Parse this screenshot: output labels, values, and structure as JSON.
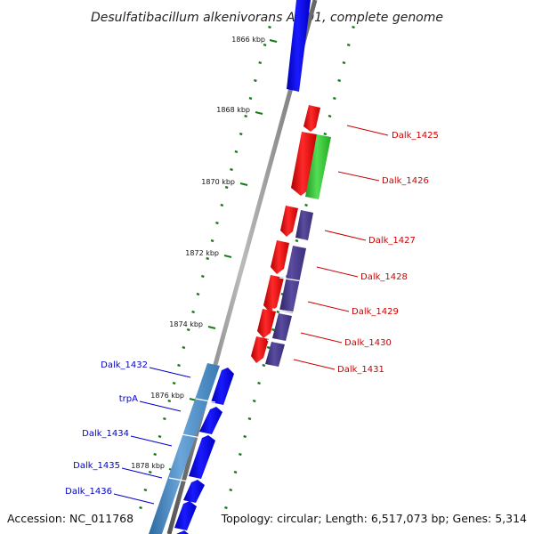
{
  "title": "Desulfatibacillum alkenivorans AK-01, complete genome",
  "accession": "Accession: NC_011768",
  "summary": "Topology: circular; Length: 6,517,073 bp; Genes: 5,314",
  "colors": {
    "backbone": "#808080",
    "tick": "#1a7a1a",
    "forward_gene": "#ff0000",
    "reverse_gene": "#0000ee",
    "rna_gene": "#33cc33",
    "operon": "#4a3c8c",
    "operon_blue": "#4a86c0",
    "forward_label": "#cc0000",
    "reverse_label": "#0000cc"
  },
  "position_markers": [
    {
      "label": "1866 kbp"
    },
    {
      "label": "1868 kbp"
    },
    {
      "label": "1870 kbp"
    },
    {
      "label": "1872 kbp"
    },
    {
      "label": "1874 kbp"
    },
    {
      "label": "1876 kbp"
    },
    {
      "label": "1878 kbp"
    }
  ],
  "forward_strand_labels": [
    "Dalk_1425",
    "Dalk_1426",
    "Dalk_1427",
    "Dalk_1428",
    "Dalk_1429",
    "Dalk_1430",
    "Dalk_1431"
  ],
  "reverse_strand_labels": [
    "Dalk_1432",
    "trpA",
    "Dalk_1434",
    "Dalk_1435",
    "Dalk_1436"
  ]
}
